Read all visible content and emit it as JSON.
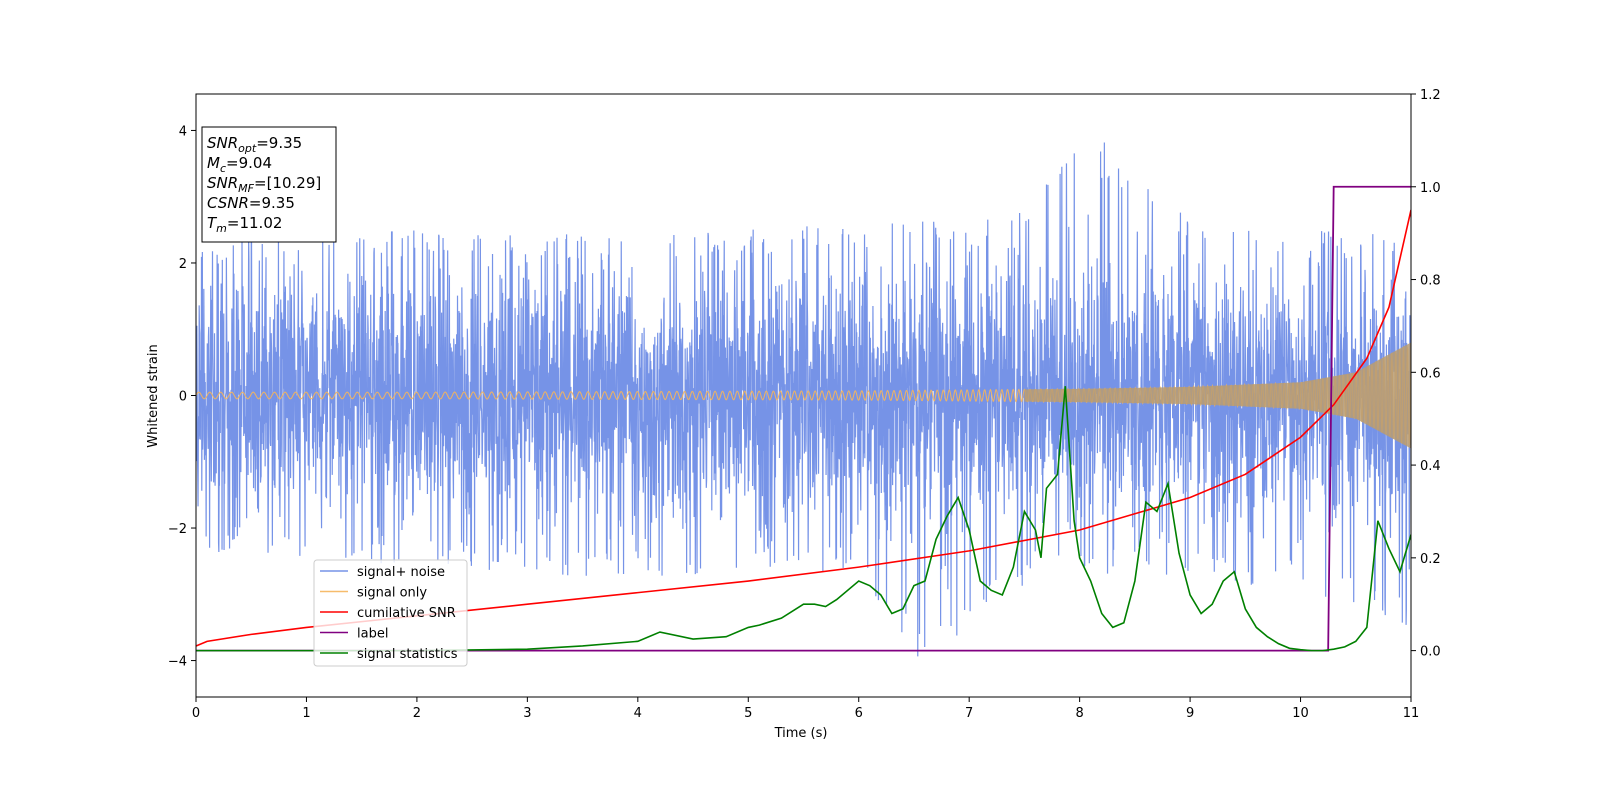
{
  "colors": {
    "noise": "#6f8de6",
    "signal": "#f5b55c",
    "cumulative": "#ff0000",
    "label": "#800080",
    "statistics": "#008000",
    "overlap": "#b89c72"
  },
  "info_box": {
    "lines": [
      {
        "name": "SNR",
        "sub": "opt",
        "value": "=9.35"
      },
      {
        "name": "M",
        "sub": "c",
        "value": "=9.04"
      },
      {
        "name": "SNR",
        "sub": "MF",
        "value": "=[10.29]"
      },
      {
        "name": "CSNR",
        "sub": "",
        "value": "=9.35"
      },
      {
        "name": "T",
        "sub": "m",
        "value": "=11.02"
      }
    ]
  },
  "chart_data": {
    "type": "line",
    "xlabel": "Time (s)",
    "ylabel": "Whitened strain",
    "xlim": [
      0,
      11
    ],
    "ylim_left": [
      -4.55,
      4.55
    ],
    "ylim_right": [
      -0.1,
      1.2
    ],
    "x_ticks": [
      0,
      1,
      2,
      3,
      4,
      5,
      6,
      7,
      8,
      9,
      10,
      11
    ],
    "y_ticks_left": [
      -4,
      -2,
      0,
      2,
      4
    ],
    "y_ticks_right": [
      0.0,
      0.2,
      0.4,
      0.6,
      0.8,
      1.0,
      1.2
    ],
    "legend_position": "lower-left",
    "legend": [
      "signal+ noise",
      "signal only",
      "cumilative SNR",
      "label",
      "signal statistics"
    ],
    "noise_envelope": {
      "x": [
        0,
        1,
        2,
        3,
        4,
        5,
        6,
        6.55,
        7,
        7.9,
        8,
        9,
        10,
        11
      ],
      "upper": [
        2.3,
        2.4,
        2.5,
        2.45,
        2.4,
        2.5,
        2.6,
        2.7,
        2.5,
        3.55,
        4.15,
        2.7,
        2.5,
        2.4
      ],
      "lower": [
        -2.3,
        -2.6,
        -2.5,
        -2.7,
        -2.8,
        -2.6,
        -2.7,
        -4.1,
        -3.5,
        -2.6,
        -2.7,
        -2.8,
        -2.9,
        -3.5
      ]
    },
    "signal_amplitude": {
      "x": [
        0,
        2,
        4,
        6,
        8,
        9,
        10,
        10.5,
        11
      ],
      "y": [
        0.05,
        0.05,
        0.06,
        0.07,
        0.1,
        0.13,
        0.2,
        0.35,
        0.8
      ]
    },
    "cumulative_snr": {
      "x": [
        0,
        0.1,
        0.5,
        1,
        2,
        3,
        4,
        5,
        6,
        7,
        8,
        9,
        9.5,
        10,
        10.3,
        10.6,
        10.8,
        11
      ],
      "y": [
        0.01,
        0.02,
        0.035,
        0.05,
        0.075,
        0.1,
        0.125,
        0.15,
        0.18,
        0.215,
        0.26,
        0.33,
        0.38,
        0.46,
        0.53,
        0.63,
        0.74,
        0.95
      ]
    },
    "label": {
      "x": [
        0,
        10.25,
        10.3,
        11
      ],
      "y": [
        0,
        0,
        1,
        1
      ]
    },
    "signal_statistics": {
      "x": [
        0,
        1,
        2,
        3,
        3.5,
        4,
        4.2,
        4.5,
        4.8,
        5,
        5.1,
        5.3,
        5.5,
        5.6,
        5.7,
        5.8,
        6,
        6.1,
        6.2,
        6.3,
        6.4,
        6.5,
        6.6,
        6.7,
        6.8,
        6.9,
        7,
        7.1,
        7.2,
        7.3,
        7.4,
        7.5,
        7.6,
        7.65,
        7.7,
        7.8,
        7.87,
        7.95,
        8,
        8.1,
        8.2,
        8.3,
        8.4,
        8.5,
        8.6,
        8.7,
        8.8,
        8.9,
        9,
        9.1,
        9.2,
        9.3,
        9.4,
        9.5,
        9.6,
        9.7,
        9.8,
        9.9,
        10,
        10.1,
        10.2,
        10.3,
        10.4,
        10.5,
        10.6,
        10.7,
        10.8,
        10.9,
        11
      ],
      "y": [
        0,
        0,
        0,
        0.003,
        0.01,
        0.02,
        0.04,
        0.025,
        0.03,
        0.05,
        0.055,
        0.07,
        0.1,
        0.1,
        0.095,
        0.11,
        0.15,
        0.14,
        0.12,
        0.08,
        0.09,
        0.14,
        0.15,
        0.24,
        0.29,
        0.33,
        0.26,
        0.15,
        0.13,
        0.12,
        0.18,
        0.3,
        0.26,
        0.2,
        0.35,
        0.38,
        0.57,
        0.28,
        0.2,
        0.15,
        0.08,
        0.05,
        0.06,
        0.15,
        0.32,
        0.3,
        0.36,
        0.21,
        0.12,
        0.08,
        0.1,
        0.15,
        0.17,
        0.09,
        0.05,
        0.03,
        0.015,
        0.005,
        0.002,
        0,
        0,
        0.003,
        0.008,
        0.02,
        0.05,
        0.28,
        0.22,
        0.17,
        0.25
      ]
    }
  }
}
